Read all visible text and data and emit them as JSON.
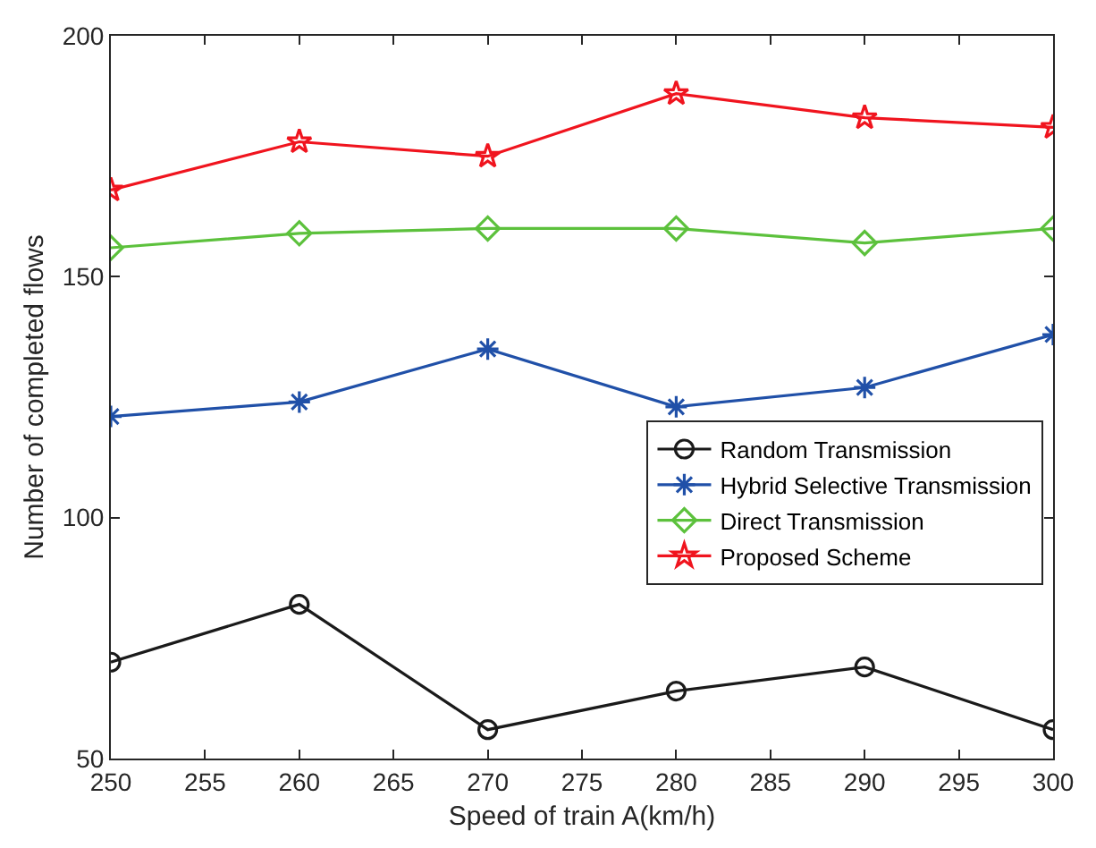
{
  "chart_data": {
    "type": "line",
    "xlabel": "Speed of train A(km/h)",
    "ylabel": "Number of completed flows",
    "x": [
      250,
      260,
      270,
      280,
      290,
      300
    ],
    "xlim": [
      250,
      300
    ],
    "xticks": [
      250,
      255,
      260,
      265,
      270,
      275,
      280,
      285,
      290,
      295,
      300
    ],
    "ylim": [
      50,
      200
    ],
    "yticks": [
      50,
      100,
      150,
      200
    ],
    "grid": false,
    "legend": "bottom right",
    "line_style": "solid",
    "series": [
      {
        "name": "Random Transmission",
        "color": "#1a1a1a",
        "marker": "circle",
        "values": [
          70,
          82,
          56,
          64,
          69,
          56
        ]
      },
      {
        "name": "Hybrid Selective Transmission",
        "color": "#2050a8",
        "marker": "cross",
        "values": [
          121,
          124,
          135,
          123,
          127,
          138
        ]
      },
      {
        "name": "Direct Transmission",
        "color": "#5cc13c",
        "marker": "diamond",
        "values": [
          156,
          159,
          160,
          160,
          157,
          160
        ]
      },
      {
        "name": "Proposed Scheme",
        "color": "#f0141e",
        "marker": "star",
        "values": [
          168,
          178,
          175,
          188,
          183,
          181
        ]
      }
    ]
  }
}
